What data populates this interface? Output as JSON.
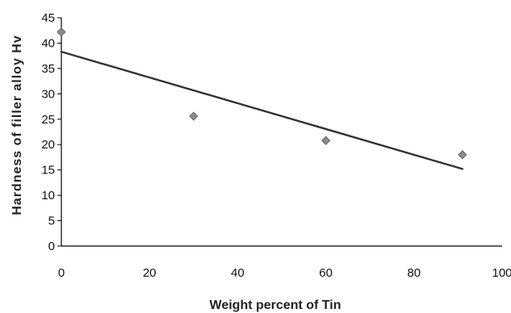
{
  "chart_data": {
    "type": "scatter",
    "title": "",
    "xlabel": "Weight percent of Tin",
    "ylabel": "Hardness of filler alloy Hv",
    "xlim": [
      0,
      100
    ],
    "ylim": [
      0,
      45
    ],
    "xticks": [
      0,
      20,
      40,
      60,
      80,
      100
    ],
    "yticks": [
      0,
      5,
      10,
      15,
      20,
      25,
      30,
      35,
      40,
      45
    ],
    "grid": false,
    "series": [
      {
        "marker": "diamond",
        "x": [
          0,
          30,
          60,
          91
        ],
        "y": [
          42.2,
          25.6,
          20.8,
          18.0
        ]
      }
    ],
    "trendline": {
      "type": "linear",
      "x": [
        0,
        91
      ],
      "y": [
        38.3,
        15.2
      ]
    },
    "colors": {
      "marker": "#8c8c8c",
      "line": "#333333",
      "axis": "#000000"
    }
  }
}
